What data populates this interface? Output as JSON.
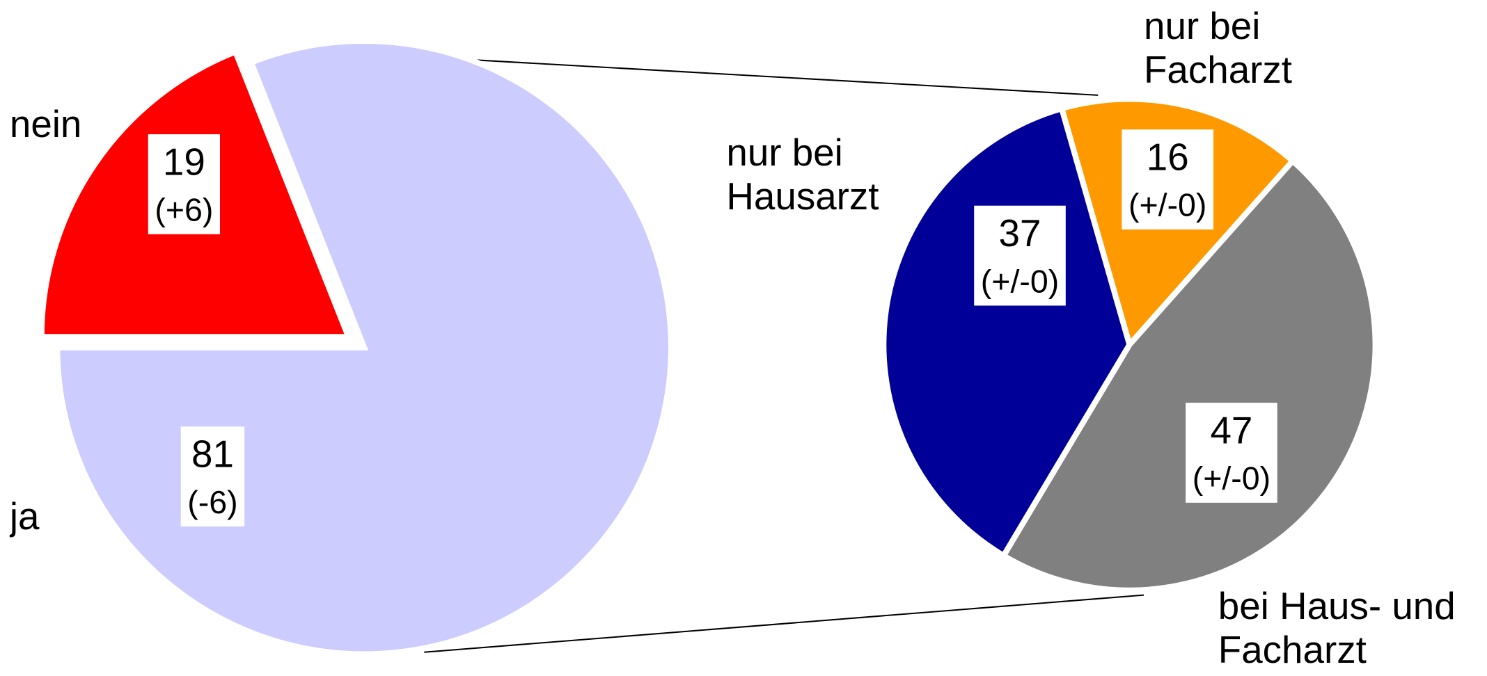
{
  "chart_data": [
    {
      "type": "pie",
      "categories": [
        "nein",
        "ja"
      ],
      "values": [
        19,
        81
      ],
      "changes": [
        6,
        -6
      ],
      "change_labels": [
        "(+6)",
        "(-6)"
      ],
      "colors": [
        "#ff0000",
        "#ccccff"
      ]
    },
    {
      "type": "pie",
      "categories": [
        "nur bei Facharzt",
        "bei Haus- und Facharzt",
        "nur bei Hausarzt"
      ],
      "values": [
        16,
        47,
        37
      ],
      "changes": [
        0,
        0,
        0
      ],
      "change_labels": [
        "(+/-0)",
        "(+/-0)",
        "(+/-0)"
      ],
      "colors": [
        "#ff9900",
        "#808080",
        "#000099"
      ]
    }
  ]
}
